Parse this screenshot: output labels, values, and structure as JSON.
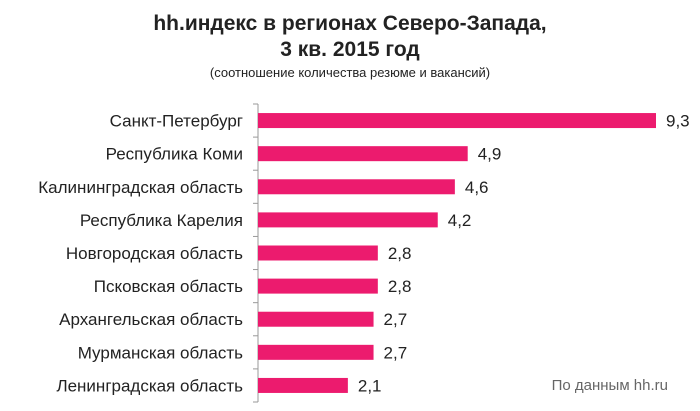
{
  "chart_data": {
    "type": "bar",
    "orientation": "horizontal",
    "title_line1": "hh.индекс в регионах Северо-Запада,",
    "title_line2": "3 кв. 2015 год",
    "subtitle": "(соотношение количества резюме и вакансий)",
    "categories": [
      "Санкт-Петербург",
      "Республика Коми",
      "Калининградская область",
      "Республика Карелия",
      "Новгородская область",
      "Псковская область",
      "Архангельская область",
      "Мурманская область",
      "Ленинградская область"
    ],
    "values": [
      9.3,
      4.9,
      4.6,
      4.2,
      2.8,
      2.8,
      2.7,
      2.7,
      2.1
    ],
    "value_labels": [
      "9,3",
      "4,9",
      "4,6",
      "4,2",
      "2,8",
      "2,8",
      "2,7",
      "2,7",
      "2,1"
    ],
    "xlim": [
      0,
      9.3
    ],
    "bar_color": "#EC1B6E",
    "axis_color": "#999999",
    "source": "По данным hh.ru",
    "grid": false
  }
}
